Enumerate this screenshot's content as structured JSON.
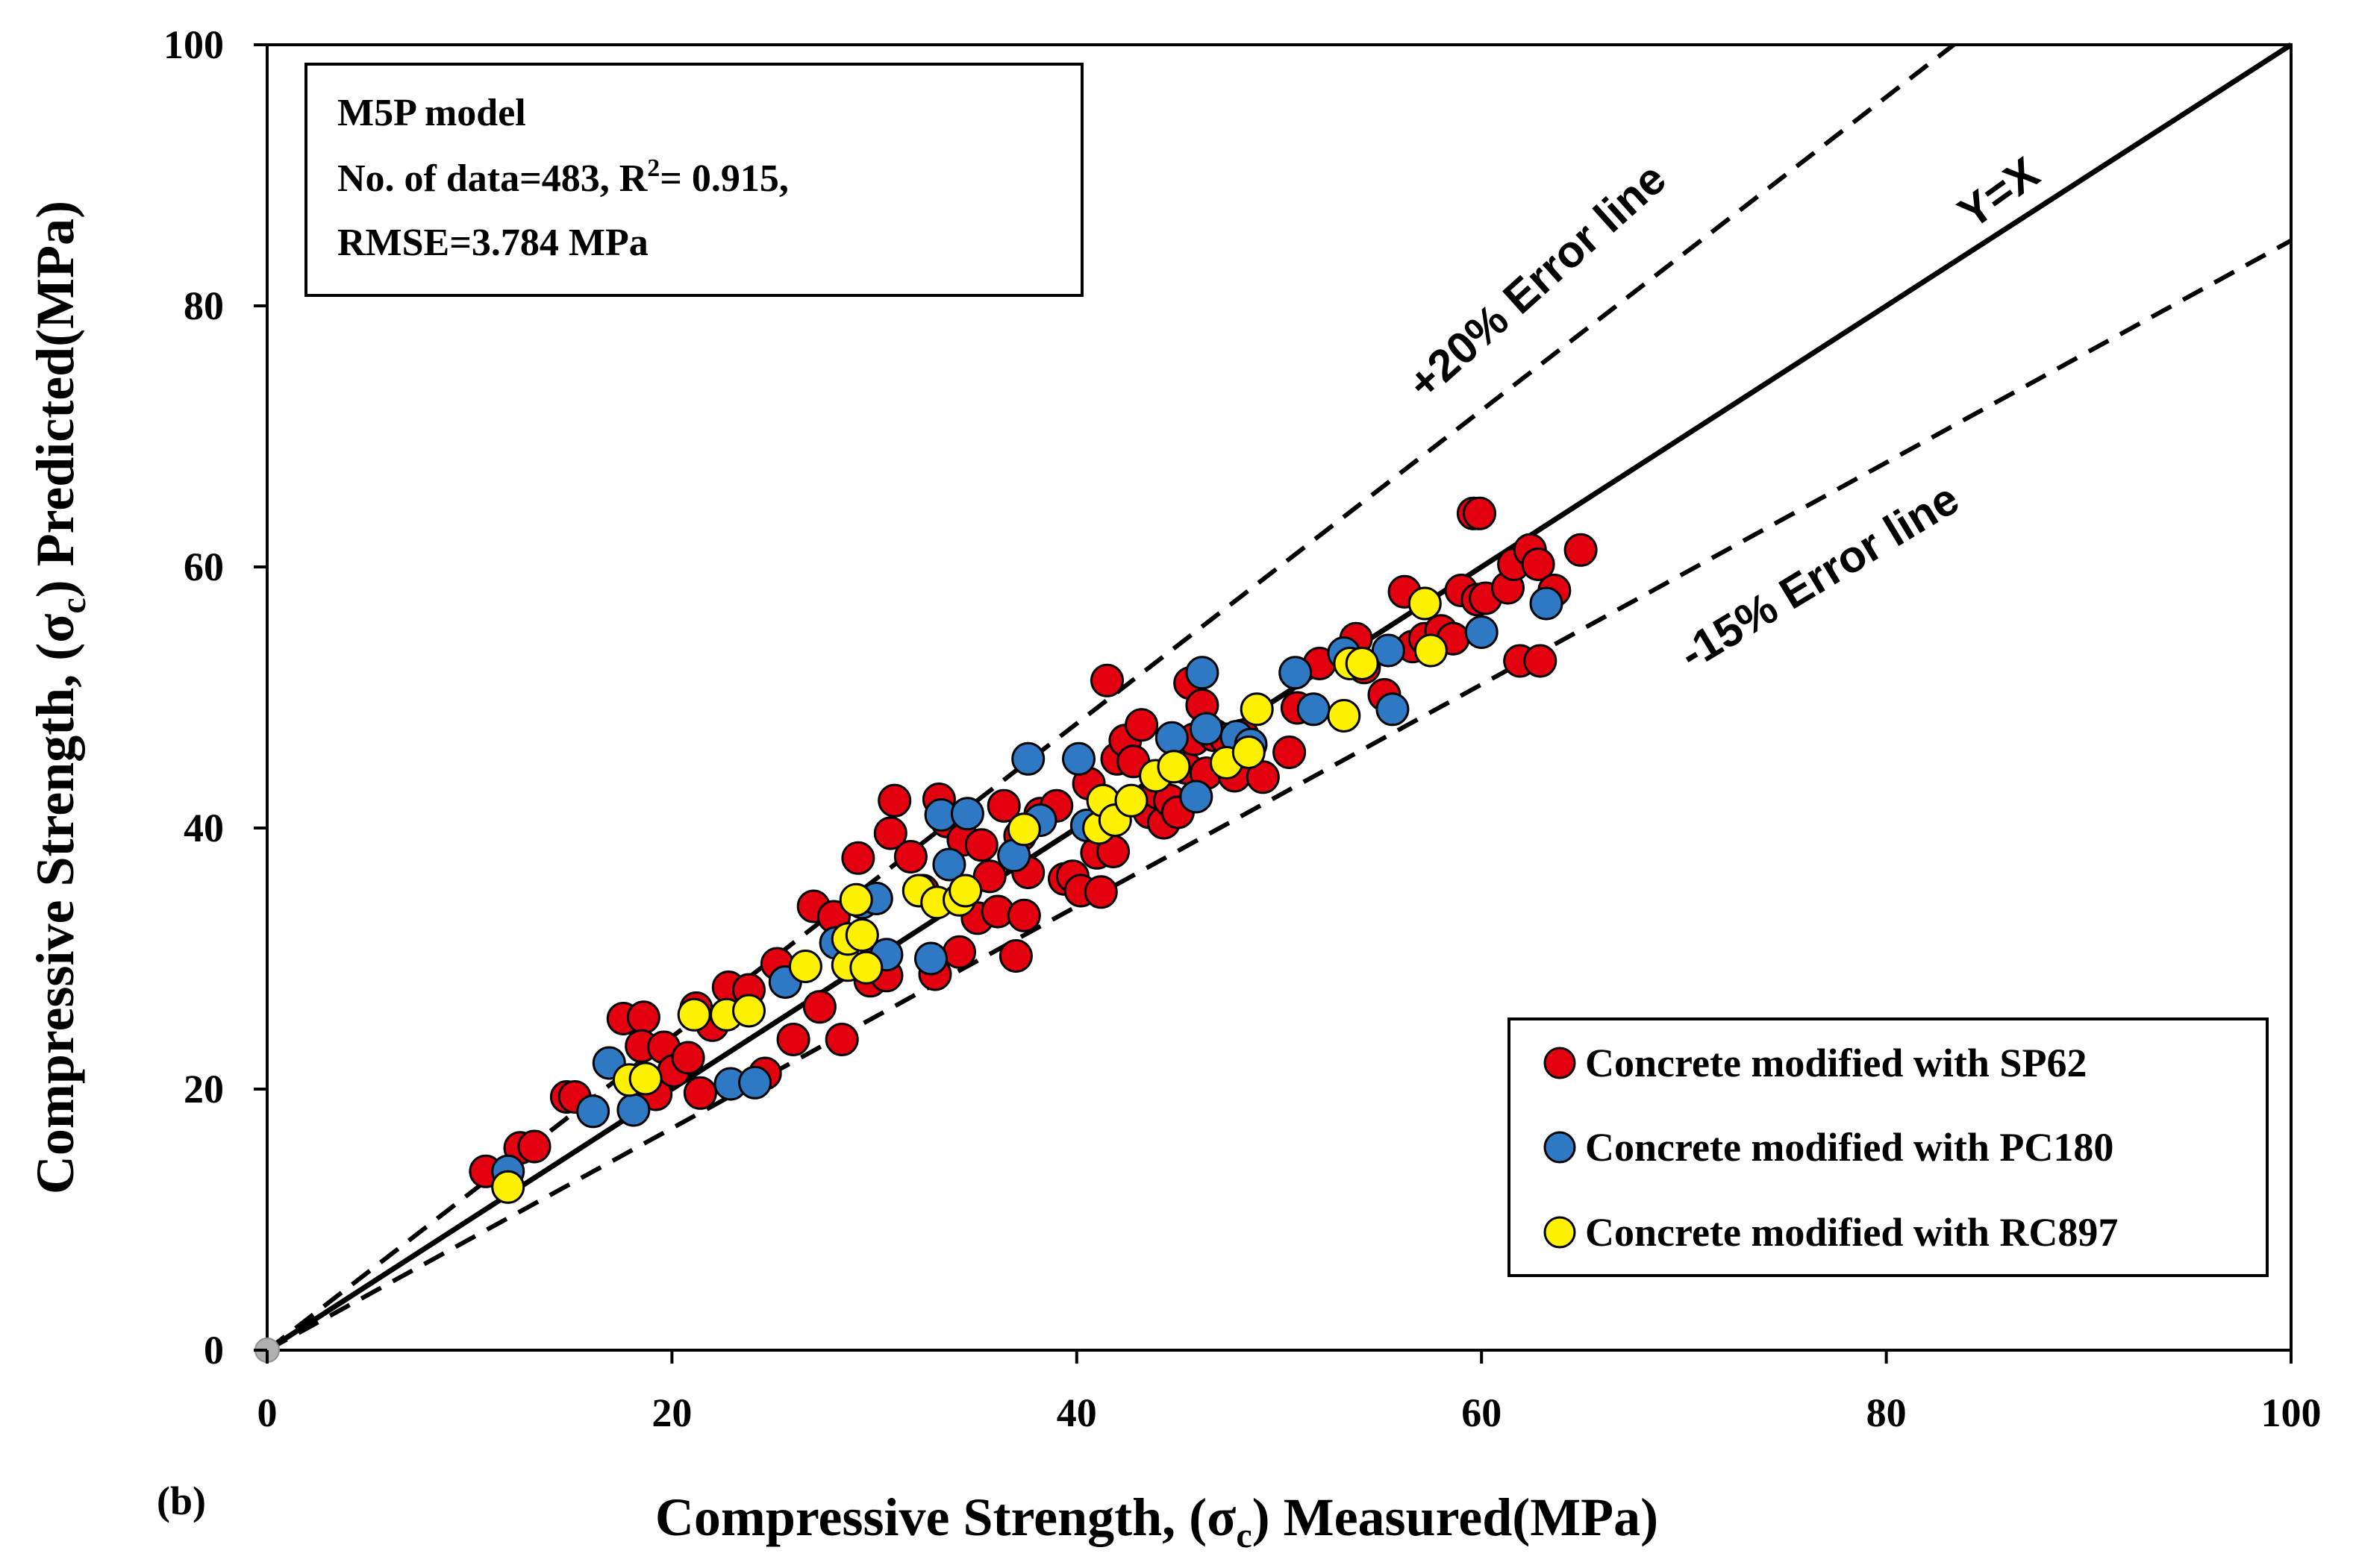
{
  "chart_data": {
    "type": "scatter",
    "panel_label": "(b)",
    "xlabel": "Compressive Strength, (σc) Measured(MPa)",
    "ylabel": "Compressive Strength, (σc) Predicted(MPa)",
    "xlabel_parts": {
      "pre": "Compressive Strength, (σ",
      "sub": "c",
      "post": ") Measured(MPa)"
    },
    "ylabel_parts": {
      "pre": "Compressive Strength, (σ",
      "sub": "c",
      "post": ") Predicted(MPa)"
    },
    "xlim": [
      0,
      100
    ],
    "ylim": [
      0,
      100
    ],
    "x_ticks": [
      0,
      20,
      40,
      60,
      80,
      100
    ],
    "y_ticks": [
      0,
      20,
      40,
      60,
      80,
      100
    ],
    "annotation_box": {
      "line1": "M5P model",
      "line2_pre": "No. of data=483, R",
      "line2_sup": "2",
      "line2_post": "= 0.915,",
      "line3": "RMSE=3.784 MPa"
    },
    "reference_lines": [
      {
        "name": "Y=X",
        "label": "Y=X",
        "slope": 1.0,
        "style": "solid"
      },
      {
        "name": "+20% Error line",
        "label": "+20% Error line",
        "slope": 1.2,
        "style": "dashed"
      },
      {
        "name": "-15% Error line",
        "label": "-15% Error line",
        "slope": 0.85,
        "style": "dashed"
      }
    ],
    "legend_position": "bottom-right",
    "series": [
      {
        "name": "Concrete modified with SP62",
        "color": "#e3000f",
        "points": [
          [
            10.8,
            13.7
          ],
          [
            12.5,
            15.5
          ],
          [
            13.2,
            15.6
          ],
          [
            14.8,
            19.4
          ],
          [
            15.2,
            19.4
          ],
          [
            17.6,
            25.4
          ],
          [
            18.6,
            25.5
          ],
          [
            18.5,
            23.3
          ],
          [
            19.2,
            19.6
          ],
          [
            19.6,
            23.2
          ],
          [
            20.1,
            21.4
          ],
          [
            20.8,
            22.4
          ],
          [
            21.2,
            26.2
          ],
          [
            21.4,
            19.7
          ],
          [
            22,
            24.9
          ],
          [
            22.8,
            27.8
          ],
          [
            23.8,
            27.6
          ],
          [
            24.6,
            21.2
          ],
          [
            25.2,
            29.6
          ],
          [
            26,
            23.8
          ],
          [
            27,
            34
          ],
          [
            27.3,
            26.3
          ],
          [
            28,
            33.2
          ],
          [
            28.4,
            23.8
          ],
          [
            29.2,
            37.7
          ],
          [
            29.8,
            28.3
          ],
          [
            30.2,
            29.8
          ],
          [
            30.6,
            28.7
          ],
          [
            30.8,
            39.6
          ],
          [
            31,
            42.1
          ],
          [
            31.8,
            37.8
          ],
          [
            32.4,
            35.2
          ],
          [
            33,
            28.8
          ],
          [
            33.2,
            42.2
          ],
          [
            33.6,
            40.5
          ],
          [
            34.2,
            30.5
          ],
          [
            34.4,
            39.1
          ],
          [
            35.1,
            33.1
          ],
          [
            35.3,
            38.7
          ],
          [
            35.7,
            36.3
          ],
          [
            36.1,
            33.6
          ],
          [
            36.4,
            41.7
          ],
          [
            37,
            30.2
          ],
          [
            37.2,
            39.4
          ],
          [
            37.4,
            33.3
          ],
          [
            37.6,
            36.6
          ],
          [
            38.2,
            41.1
          ],
          [
            39,
            41.7
          ],
          [
            39.4,
            36.1
          ],
          [
            39.8,
            36.3
          ],
          [
            40.2,
            35.2
          ],
          [
            40.6,
            43.4
          ],
          [
            41,
            38.1
          ],
          [
            41.2,
            35.1
          ],
          [
            41.5,
            51.3
          ],
          [
            41.8,
            38.2
          ],
          [
            42,
            45.3
          ],
          [
            42.4,
            46.7
          ],
          [
            42.8,
            45.1
          ],
          [
            43.2,
            47.9
          ],
          [
            43.6,
            41.2
          ],
          [
            44,
            42.7
          ],
          [
            44.3,
            40.4
          ],
          [
            44.6,
            42.1
          ],
          [
            45,
            41.2
          ],
          [
            45.4,
            44.6
          ],
          [
            45.6,
            51.1
          ],
          [
            45.8,
            46.8
          ],
          [
            46.2,
            49.4
          ],
          [
            46.4,
            44.2
          ],
          [
            46.8,
            47.1
          ],
          [
            47.4,
            46.8
          ],
          [
            47.8,
            44
          ],
          [
            48.2,
            47.1
          ],
          [
            49.2,
            43.9
          ],
          [
            50.5,
            45.8
          ],
          [
            50.9,
            49.2
          ],
          [
            52,
            52.6
          ],
          [
            53.5,
            53.6
          ],
          [
            53.8,
            54.5
          ],
          [
            54.2,
            52.3
          ],
          [
            55.2,
            50.2
          ],
          [
            56.2,
            58.1
          ],
          [
            56.6,
            53.9
          ],
          [
            57.2,
            54.5
          ],
          [
            58,
            55.1
          ],
          [
            58.6,
            54.5
          ],
          [
            59,
            58.2
          ],
          [
            59.6,
            64.1
          ],
          [
            59.8,
            57.5
          ],
          [
            59.9,
            64.1
          ],
          [
            60.2,
            57.6
          ],
          [
            61.3,
            58.4
          ],
          [
            61.6,
            60.2
          ],
          [
            61.9,
            52.8
          ],
          [
            62.4,
            61.3
          ],
          [
            62.8,
            60.2
          ],
          [
            62.9,
            52.8
          ],
          [
            63.6,
            58.2
          ],
          [
            64.9,
            61.3
          ]
        ]
      },
      {
        "name": "Concrete modified with PC180",
        "color": "#2f78c4",
        "points": [
          [
            11.9,
            13.7
          ],
          [
            16.1,
            18.3
          ],
          [
            16.9,
            22
          ],
          [
            18.1,
            18.4
          ],
          [
            22.9,
            20.4
          ],
          [
            24.1,
            20.5
          ],
          [
            25.6,
            28.2
          ],
          [
            28.1,
            31.2
          ],
          [
            29.4,
            34.3
          ],
          [
            30.1,
            34.6
          ],
          [
            30.6,
            30.3
          ],
          [
            32.8,
            30
          ],
          [
            33.3,
            41
          ],
          [
            33.7,
            37.2
          ],
          [
            34.6,
            41.1
          ],
          [
            36.9,
            37.9
          ],
          [
            37.6,
            45.3
          ],
          [
            38.2,
            40.6
          ],
          [
            40.1,
            45.3
          ],
          [
            40.5,
            40.2
          ],
          [
            44.7,
            46.9
          ],
          [
            45.9,
            42.4
          ],
          [
            46.2,
            51.9
          ],
          [
            46.4,
            47.6
          ],
          [
            47.9,
            47
          ],
          [
            48.6,
            46.4
          ],
          [
            50.8,
            51.9
          ],
          [
            51.7,
            49.1
          ],
          [
            53.2,
            53.4
          ],
          [
            55.4,
            53.6
          ],
          [
            55.6,
            49.1
          ],
          [
            60,
            55
          ],
          [
            63.2,
            57.2
          ]
        ]
      },
      {
        "name": "Concrete modified with RC897",
        "color": "#fff200",
        "points": [
          [
            11.9,
            12.5
          ],
          [
            17.9,
            20.7
          ],
          [
            18.7,
            20.8
          ],
          [
            21.1,
            25.7
          ],
          [
            22.7,
            25.7
          ],
          [
            23.8,
            26
          ],
          [
            26.6,
            29.4
          ],
          [
            28.7,
            29.5
          ],
          [
            28.7,
            31.5
          ],
          [
            29.1,
            34.5
          ],
          [
            29.4,
            31.8
          ],
          [
            29.6,
            29.3
          ],
          [
            32.2,
            35.2
          ],
          [
            33.1,
            34.3
          ],
          [
            34.2,
            34.5
          ],
          [
            34.5,
            35.2
          ],
          [
            37.4,
            39.9
          ],
          [
            41.1,
            40
          ],
          [
            41.3,
            42.1
          ],
          [
            41.9,
            40.6
          ],
          [
            42.7,
            42.1
          ],
          [
            43.9,
            44
          ],
          [
            44.8,
            44.7
          ],
          [
            47.4,
            45
          ],
          [
            48.5,
            45.8
          ],
          [
            48.9,
            49.1
          ],
          [
            53.2,
            48.6
          ],
          [
            53.5,
            52.6
          ],
          [
            54.1,
            52.6
          ],
          [
            57.2,
            57.2
          ],
          [
            57.5,
            53.6
          ]
        ]
      }
    ]
  }
}
